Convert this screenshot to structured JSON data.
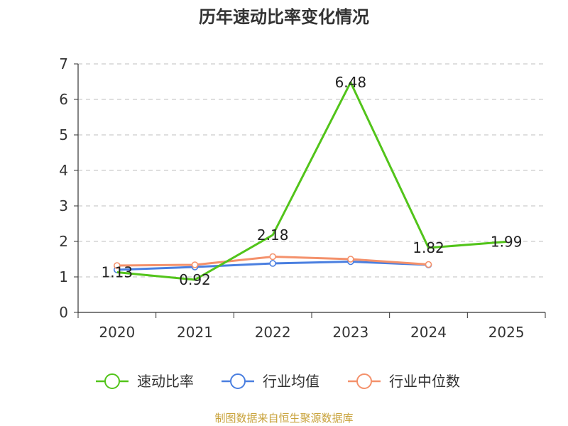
{
  "chart_data": {
    "type": "line",
    "title": "历年速动比率变化情况",
    "categories": [
      "2020",
      "2021",
      "2022",
      "2023",
      "2024",
      "2025"
    ],
    "ylim": [
      0,
      7
    ],
    "yticks": [
      0,
      1,
      2,
      3,
      4,
      5,
      6,
      7
    ],
    "grid": true,
    "legend_position": "bottom",
    "series": [
      {
        "name": "速动比率",
        "color": "#52c41a",
        "values": [
          1.13,
          0.92,
          2.18,
          6.48,
          1.82,
          1.99
        ],
        "labels": [
          "1.13",
          "0.92",
          "2.18",
          "6.48",
          "1.82",
          "1.99"
        ],
        "show_labels": true
      },
      {
        "name": "行业均值",
        "color": "#4a7fe0",
        "values": [
          1.2,
          1.28,
          1.38,
          1.43,
          1.34,
          null
        ],
        "show_labels": false
      },
      {
        "name": "行业中位数",
        "color": "#f4916b",
        "values": [
          1.32,
          1.34,
          1.57,
          1.5,
          1.35,
          null
        ],
        "show_labels": false
      }
    ]
  },
  "footer": {
    "source": "制图数据来自恒生聚源数据库"
  }
}
